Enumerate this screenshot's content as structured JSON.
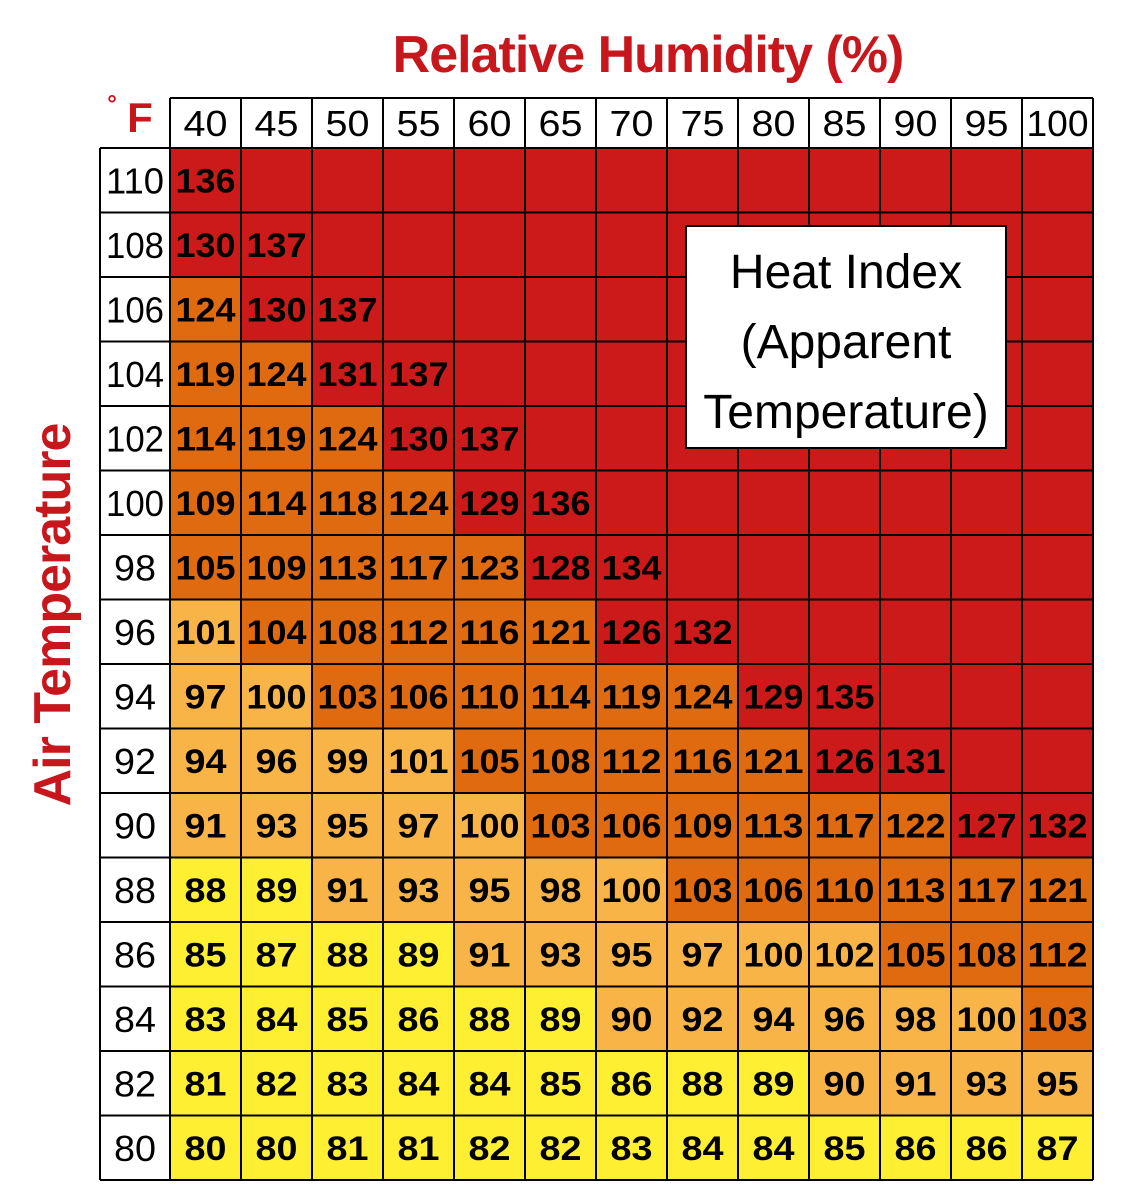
{
  "chart_data": {
    "type": "heatmap",
    "title": "Heat Index (Apparent Temperature)",
    "title_lines": [
      "Heat Index",
      "(Apparent",
      "Temperature)"
    ],
    "xlabel": "Relative Humidity (%)",
    "ylabel": "Air Temperature",
    "y_unit": "°F",
    "y_unit_symbol": "°",
    "y_unit_letter": "F",
    "x": [
      40,
      45,
      50,
      55,
      60,
      65,
      70,
      75,
      80,
      85,
      90,
      95,
      100
    ],
    "y": [
      110,
      108,
      106,
      104,
      102,
      100,
      98,
      96,
      94,
      92,
      90,
      88,
      86,
      84,
      82,
      80
    ],
    "values": [
      [
        136,
        null,
        null,
        null,
        null,
        null,
        null,
        null,
        null,
        null,
        null,
        null,
        null
      ],
      [
        130,
        137,
        null,
        null,
        null,
        null,
        null,
        null,
        null,
        null,
        null,
        null,
        null
      ],
      [
        124,
        130,
        137,
        null,
        null,
        null,
        null,
        null,
        null,
        null,
        null,
        null,
        null
      ],
      [
        119,
        124,
        131,
        137,
        null,
        null,
        null,
        null,
        null,
        null,
        null,
        null,
        null
      ],
      [
        114,
        119,
        124,
        130,
        137,
        null,
        null,
        null,
        null,
        null,
        null,
        null,
        null
      ],
      [
        109,
        114,
        118,
        124,
        129,
        136,
        null,
        null,
        null,
        null,
        null,
        null,
        null
      ],
      [
        105,
        109,
        113,
        117,
        123,
        128,
        134,
        null,
        null,
        null,
        null,
        null,
        null
      ],
      [
        101,
        104,
        108,
        112,
        116,
        121,
        126,
        132,
        null,
        null,
        null,
        null,
        null
      ],
      [
        97,
        100,
        103,
        106,
        110,
        114,
        119,
        124,
        129,
        135,
        null,
        null,
        null
      ],
      [
        94,
        96,
        99,
        101,
        105,
        108,
        112,
        116,
        121,
        126,
        131,
        null,
        null
      ],
      [
        91,
        93,
        95,
        97,
        100,
        103,
        106,
        109,
        113,
        117,
        122,
        127,
        132
      ],
      [
        88,
        89,
        91,
        93,
        95,
        98,
        100,
        103,
        106,
        110,
        113,
        117,
        121
      ],
      [
        85,
        87,
        88,
        89,
        91,
        93,
        95,
        97,
        100,
        102,
        105,
        108,
        112
      ],
      [
        83,
        84,
        85,
        86,
        88,
        89,
        90,
        92,
        94,
        96,
        98,
        100,
        103
      ],
      [
        81,
        82,
        83,
        84,
        84,
        85,
        86,
        88,
        89,
        90,
        91,
        93,
        95
      ],
      [
        80,
        80,
        81,
        81,
        82,
        82,
        83,
        84,
        84,
        85,
        86,
        86,
        87
      ]
    ],
    "bands": [
      {
        "min": 80,
        "max": 89,
        "color": "#ffef33"
      },
      {
        "min": 90,
        "max": 102,
        "color": "#f8b447"
      },
      {
        "min": 103,
        "max": 124,
        "color": "#e06a10"
      },
      {
        "min": 125,
        "max": 200,
        "color": "#cc1a1a"
      }
    ],
    "colors": {
      "title": "#c8161d",
      "grid": "#000000",
      "header_bg": "#ffffff"
    }
  }
}
